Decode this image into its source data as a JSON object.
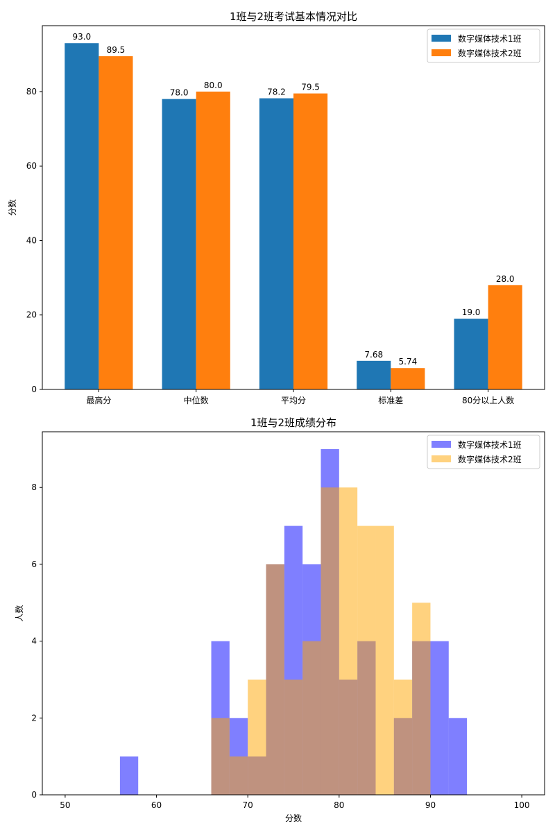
{
  "chart_data": [
    {
      "type": "bar",
      "title": "1班与2班考试基本情况对比",
      "xlabel": "",
      "ylabel": "分数",
      "categories": [
        "最高分",
        "中位数",
        "平均分",
        "标准差",
        "80分以上人数"
      ],
      "series": [
        {
          "name": "数字媒体技术1班",
          "values": [
            93.0,
            78.0,
            78.2,
            7.68,
            19.0
          ],
          "labels": [
            "93.0",
            "78.0",
            "78.2",
            "7.68",
            "19.0"
          ],
          "color": "#1f77b4"
        },
        {
          "name": "数字媒体技术2班",
          "values": [
            89.5,
            80.0,
            79.5,
            5.74,
            28.0
          ],
          "labels": [
            "89.5",
            "80.0",
            "79.5",
            "5.74",
            "28.0"
          ],
          "color": "#ff7f0e"
        }
      ],
      "ylim": [
        0,
        97.7
      ],
      "yticks": [
        0,
        20,
        40,
        60,
        80
      ],
      "grid": false,
      "legend": "top-right"
    },
    {
      "type": "histogram",
      "title": "1班与2班成绩分布",
      "xlabel": "分数",
      "ylabel": "人数",
      "bin_edges": [
        50,
        52,
        54,
        56,
        58,
        60,
        62,
        64,
        66,
        68,
        70,
        72,
        74,
        76,
        78,
        80,
        82,
        84,
        86,
        88,
        90,
        92,
        94,
        96,
        98,
        100
      ],
      "series": [
        {
          "name": "数字媒体技术1班",
          "counts": [
            0,
            0,
            0,
            1,
            0,
            0,
            0,
            0,
            4,
            2,
            1,
            6,
            7,
            6,
            9,
            3,
            4,
            0,
            2,
            4,
            4,
            2,
            0,
            0,
            0
          ],
          "color": "#0000ff",
          "alpha": 0.5
        },
        {
          "name": "数字媒体技术2班",
          "counts": [
            0,
            0,
            0,
            0,
            0,
            0,
            0,
            0,
            2,
            1,
            3,
            6,
            3,
            4,
            8,
            8,
            7,
            7,
            3,
            5,
            0,
            0,
            0,
            0,
            0
          ],
          "color": "#ffa500",
          "alpha": 0.5
        }
      ],
      "xlim": [
        47.5,
        102.5
      ],
      "ylim": [
        0,
        9.45
      ],
      "xticks": [
        50,
        60,
        70,
        80,
        90,
        100
      ],
      "yticks": [
        0,
        2,
        4,
        6,
        8
      ],
      "grid": false,
      "legend": "top-right"
    }
  ]
}
